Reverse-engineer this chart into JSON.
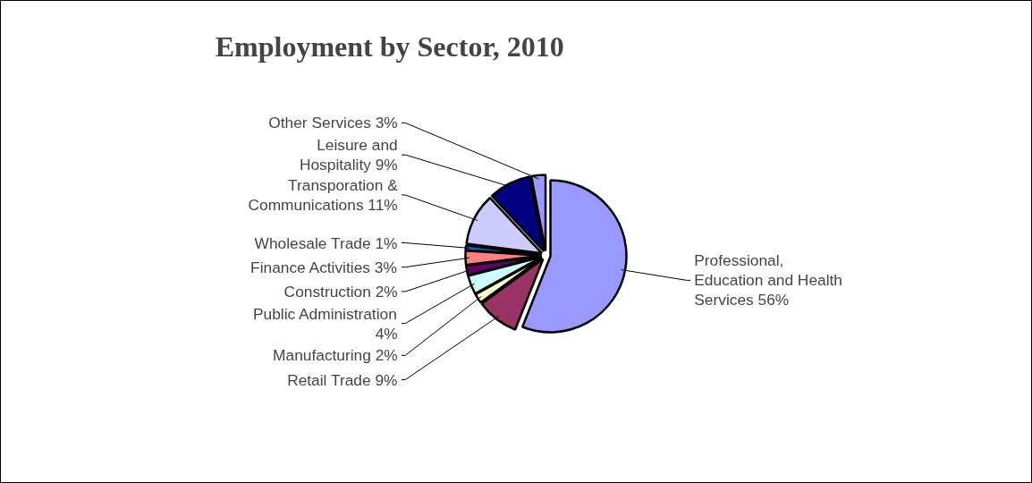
{
  "chart_data": {
    "type": "pie",
    "title": "Employment by Sector, 2010",
    "categories": [
      "Professional, Education and Health Services",
      "Retail Trade",
      "Manufacturing",
      "Public Administration",
      "Construction",
      "Finance Activities",
      "Wholesale Trade",
      "Transporation & Communications",
      "Leisure and Hospitality",
      "Other Services"
    ],
    "values": [
      56,
      9,
      2,
      4,
      2,
      3,
      1,
      11,
      9,
      3
    ],
    "value_labels": [
      "56%",
      "9%",
      "2%",
      "4%",
      "2%",
      "3%",
      "1%",
      "11%",
      "9%",
      "3%"
    ],
    "colors": [
      "#9999ff",
      "#993366",
      "#ffffcc",
      "#ccffff",
      "#660066",
      "#ff8080",
      "#0066cc",
      "#ccccff",
      "#000080",
      "#9999ff"
    ]
  }
}
